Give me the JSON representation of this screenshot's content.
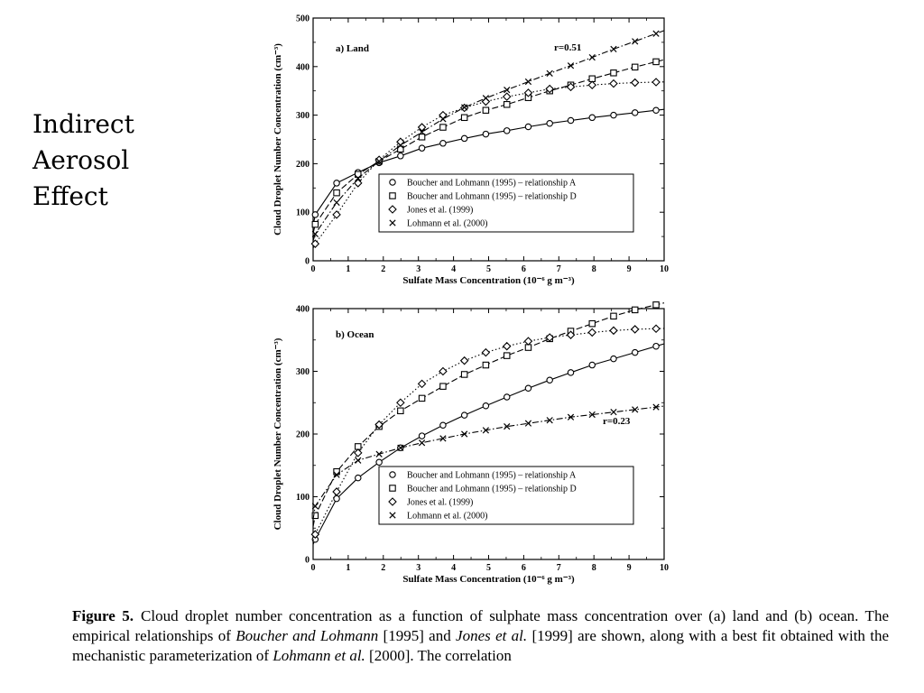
{
  "side_title": [
    "Indirect",
    "Aerosol",
    "Effect"
  ],
  "caption": {
    "figure_label": "Figure 5.",
    "line1": "Cloud droplet number concentration as a function of sulphate mass concentration over (a) land and (b) ocean. The empirical relationships of",
    "ref1": "Boucher and Lohmann",
    "ref1_year": " [1995] and ",
    "ref2": "Jones et al.",
    "ref2_year": " [1999] are shown, along with a best fit obtained with the mechanistic parameterization of ",
    "ref3": "Lohmann et al.",
    "ref3_year": " [2000]. The correlation"
  },
  "chart_data": [
    {
      "type": "line",
      "panel": "a) Land",
      "annotation": "r=0.51",
      "xlabel": "Sulfate Mass Concentration (10⁻⁶ g m⁻³)",
      "ylabel": "Cloud Droplet Number Concentration (cm⁻³)",
      "xlim": [
        0,
        10
      ],
      "ylim": [
        0,
        500
      ],
      "x_ticks": [
        "0",
        "1",
        "2",
        "3",
        "4",
        "5",
        "6",
        "7",
        "8",
        "9",
        "10"
      ],
      "y_ticks": [
        "0",
        "100",
        "200",
        "300",
        "400",
        "500"
      ],
      "legend_position": "center-right",
      "x": [
        0.06,
        0.67,
        1.28,
        1.88,
        2.49,
        3.1,
        3.7,
        4.31,
        4.92,
        5.52,
        6.13,
        6.74,
        7.34,
        7.95,
        8.56,
        9.17,
        9.77
      ],
      "series": [
        {
          "name": "Boucher and Lohmann (1995) – relationship A",
          "marker": "circle",
          "dash": "solid",
          "values": [
            95,
            160,
            182,
            202,
            216,
            232,
            242,
            252,
            261,
            268,
            276,
            283,
            289,
            295,
            300,
            305,
            310
          ]
        },
        {
          "name": "Boucher and Lohmann (1995) – relationship D",
          "marker": "square",
          "dash": "dashed",
          "values": [
            75,
            140,
            178,
            205,
            230,
            255,
            275,
            295,
            310,
            322,
            336,
            350,
            362,
            375,
            387,
            399,
            410
          ]
        },
        {
          "name": "Jones et al. (1999)",
          "marker": "diamond",
          "dash": "dotted",
          "values": [
            35,
            95,
            160,
            208,
            245,
            275,
            300,
            315,
            328,
            338,
            346,
            354,
            358,
            362,
            365,
            367,
            368
          ]
        },
        {
          "name": "Lohmann et al. (2000)",
          "marker": "x",
          "dash": "dashdot",
          "values": [
            55,
            120,
            170,
            205,
            238,
            265,
            292,
            316,
            335,
            352,
            369,
            386,
            402,
            419,
            436,
            452,
            468
          ]
        }
      ]
    },
    {
      "type": "line",
      "panel": "b) Ocean",
      "annotation": "r=0.23",
      "xlabel": "Sulfate Mass Concentration (10⁻⁶ g m⁻³)",
      "ylabel": "Cloud Droplet Number Concentration (cm⁻³)",
      "xlim": [
        0,
        10
      ],
      "ylim": [
        0,
        400
      ],
      "x_ticks": [
        "0",
        "1",
        "2",
        "3",
        "4",
        "5",
        "6",
        "7",
        "8",
        "9",
        "10"
      ],
      "y_ticks": [
        "0",
        "100",
        "200",
        "300",
        "400"
      ],
      "legend_position": "bottom-right",
      "x": [
        0.06,
        0.67,
        1.28,
        1.88,
        2.49,
        3.1,
        3.7,
        4.31,
        4.92,
        5.52,
        6.13,
        6.74,
        7.34,
        7.95,
        8.56,
        9.17,
        9.77
      ],
      "series": [
        {
          "name": "Boucher and Lohmann (1995) – relationship A",
          "marker": "circle",
          "dash": "solid",
          "values": [
            32,
            97,
            130,
            155,
            178,
            197,
            214,
            230,
            245,
            259,
            273,
            286,
            298,
            310,
            320,
            330,
            340
          ]
        },
        {
          "name": "Boucher and Lohmann (1995) – relationship D",
          "marker": "square",
          "dash": "dashed",
          "values": [
            70,
            140,
            180,
            212,
            237,
            257,
            276,
            295,
            310,
            325,
            338,
            352,
            364,
            376,
            388,
            398,
            406
          ]
        },
        {
          "name": "Jones et al. (1999)",
          "marker": "diamond",
          "dash": "dotted",
          "values": [
            40,
            108,
            170,
            215,
            250,
            280,
            300,
            317,
            330,
            340,
            348,
            354,
            358,
            362,
            365,
            367,
            368
          ]
        },
        {
          "name": "Lohmann et al. (2000)",
          "marker": "x",
          "dash": "dashdot",
          "values": [
            85,
            135,
            158,
            168,
            178,
            186,
            193,
            200,
            206,
            212,
            217,
            222,
            227,
            231,
            235,
            239,
            243
          ]
        }
      ]
    }
  ]
}
